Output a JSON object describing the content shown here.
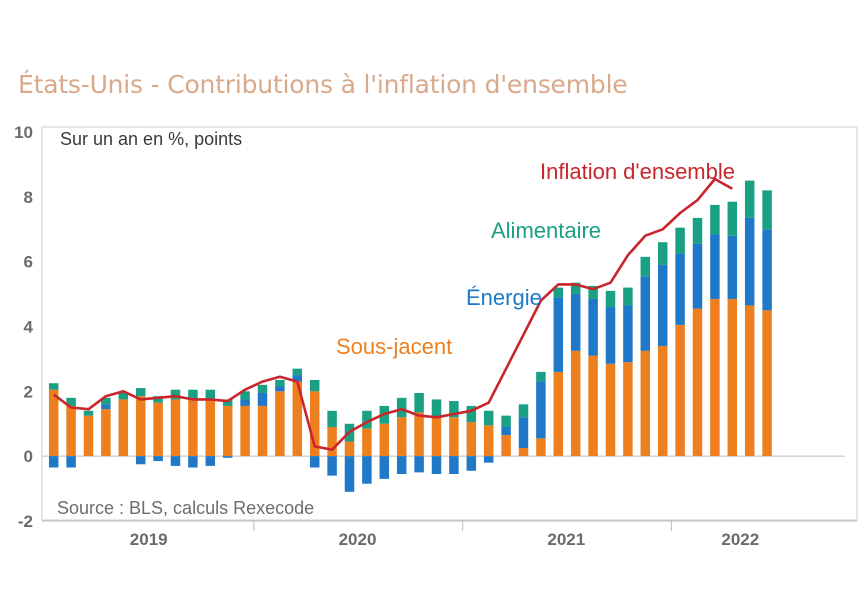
{
  "chart_data": {
    "type": "bar",
    "stacked": true,
    "title": "États-Unis - Contributions à l'inflation d'ensemble",
    "subtitle": "Sur un an en %, points",
    "source": "Source : BLS, calculs Rexecode",
    "ylim": [
      -2,
      10
    ],
    "yticks": [
      "-2",
      "0",
      "2",
      "4",
      "6",
      "8",
      "10"
    ],
    "x_labels": [
      "2019",
      "2020",
      "2021",
      "2022"
    ],
    "x_label_months": [
      6,
      18,
      30,
      40
    ],
    "year_boundaries": [
      12,
      24,
      36
    ],
    "months": 44,
    "colors": {
      "core": "#ee7f1e",
      "energy": "#1f78c8",
      "food": "#1aa083",
      "headline": "#c9252c"
    },
    "series": [
      {
        "name": "Sous-jacent",
        "values": [
          2.05,
          1.55,
          1.25,
          1.45,
          1.75,
          1.85,
          1.65,
          1.75,
          1.75,
          1.75,
          1.55,
          1.55,
          1.55,
          2.0,
          2.3,
          2.0,
          0.9,
          0.45,
          0.85,
          1.0,
          1.2,
          1.35,
          1.2,
          1.2,
          1.05,
          0.95,
          0.65,
          0.25,
          0.55,
          2.6,
          3.25,
          3.1,
          2.85,
          2.9,
          3.25,
          3.4,
          4.05,
          4.55,
          4.85,
          4.85,
          4.65,
          4.5
        ]
      },
      {
        "name": "Énergie",
        "values": [
          -0.35,
          -0.35,
          0.0,
          0.15,
          0.0,
          -0.25,
          -0.15,
          -0.3,
          -0.35,
          -0.3,
          -0.05,
          0.2,
          0.4,
          0.15,
          0.2,
          -0.35,
          -0.6,
          -1.1,
          -0.85,
          -0.7,
          -0.55,
          -0.5,
          -0.55,
          -0.55,
          -0.45,
          -0.2,
          0.25,
          0.95,
          1.75,
          2.3,
          1.75,
          1.75,
          1.75,
          1.75,
          2.3,
          2.5,
          2.2,
          2.0,
          2.0,
          1.95,
          2.7,
          2.5
        ]
      },
      {
        "name": "Alimentaire",
        "values": [
          0.2,
          0.25,
          0.15,
          0.2,
          0.2,
          0.25,
          0.2,
          0.3,
          0.3,
          0.3,
          0.2,
          0.25,
          0.25,
          0.2,
          0.2,
          0.35,
          0.5,
          0.55,
          0.55,
          0.55,
          0.6,
          0.6,
          0.55,
          0.5,
          0.5,
          0.45,
          0.35,
          0.4,
          0.3,
          0.3,
          0.35,
          0.4,
          0.5,
          0.55,
          0.6,
          0.7,
          0.8,
          0.8,
          0.9,
          1.05,
          1.15,
          1.2
        ]
      },
      {
        "name": "Inflation d'ensemble",
        "type": "line",
        "values": [
          1.9,
          1.5,
          1.45,
          1.85,
          2.0,
          1.75,
          1.8,
          1.85,
          1.75,
          1.75,
          1.7,
          2.05,
          2.3,
          2.45,
          2.3,
          0.3,
          0.2,
          0.75,
          1.05,
          1.3,
          1.45,
          1.25,
          1.2,
          1.3,
          1.4,
          1.65,
          4.8,
          5.3,
          5.3,
          5.15,
          5.35,
          6.2,
          6.8,
          7.0,
          7.5,
          7.9,
          8.55,
          8.25
        ]
      }
    ],
    "bar_months": [
      1,
      2,
      3,
      4,
      5,
      6,
      7,
      8,
      9,
      10,
      11,
      12,
      13,
      14,
      15,
      16,
      17,
      18,
      19,
      20,
      21,
      22,
      23,
      24,
      25,
      26,
      27,
      28,
      29,
      30,
      31,
      32,
      33,
      34,
      35,
      36,
      37,
      38,
      39,
      40,
      41,
      42
    ],
    "line_months": [
      1,
      2,
      3,
      4,
      5,
      6,
      7,
      8,
      9,
      10,
      11,
      12,
      13,
      14,
      15,
      16,
      17,
      18,
      19,
      20,
      21,
      22,
      23,
      24,
      25,
      26,
      29,
      30,
      31,
      32,
      33,
      34,
      35,
      36,
      37,
      38,
      39,
      40
    ]
  },
  "annotations": {
    "headline": "Inflation d'ensemble",
    "food": "Alimentaire",
    "energy": "Énergie",
    "core": "Sous-jacent"
  }
}
